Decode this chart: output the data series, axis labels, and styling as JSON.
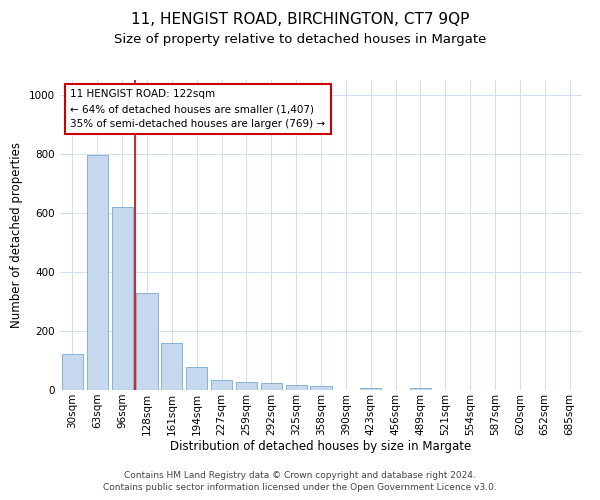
{
  "title": "11, HENGIST ROAD, BIRCHINGTON, CT7 9QP",
  "subtitle": "Size of property relative to detached houses in Margate",
  "xlabel": "Distribution of detached houses by size in Margate",
  "ylabel": "Number of detached properties",
  "categories": [
    "30sqm",
    "63sqm",
    "96sqm",
    "128sqm",
    "161sqm",
    "194sqm",
    "227sqm",
    "259sqm",
    "292sqm",
    "325sqm",
    "358sqm",
    "390sqm",
    "423sqm",
    "456sqm",
    "489sqm",
    "521sqm",
    "554sqm",
    "587sqm",
    "620sqm",
    "652sqm",
    "685sqm"
  ],
  "values": [
    122,
    795,
    620,
    328,
    160,
    78,
    35,
    27,
    25,
    18,
    15,
    0,
    8,
    0,
    7,
    0,
    0,
    0,
    0,
    0,
    0
  ],
  "bar_color": "#c5d8ee",
  "bar_edge_color": "#7aaad0",
  "grid_color": "#d0e0ee",
  "background_color": "#ffffff",
  "annotation_text_line1": "11 HENGIST ROAD: 122sqm",
  "annotation_text_line2": "← 64% of detached houses are smaller (1,407)",
  "annotation_text_line3": "35% of semi-detached houses are larger (769) →",
  "annotation_box_facecolor": "#ffffff",
  "annotation_box_edgecolor": "#cc0000",
  "marker_line_color": "#cc0000",
  "footer_line1": "Contains HM Land Registry data © Crown copyright and database right 2024.",
  "footer_line2": "Contains public sector information licensed under the Open Government Licence v3.0.",
  "ylim": [
    0,
    1050
  ],
  "title_fontsize": 11,
  "subtitle_fontsize": 9.5,
  "axis_label_fontsize": 8.5,
  "tick_fontsize": 7.5,
  "annotation_fontsize": 7.5,
  "footer_fontsize": 6.5
}
